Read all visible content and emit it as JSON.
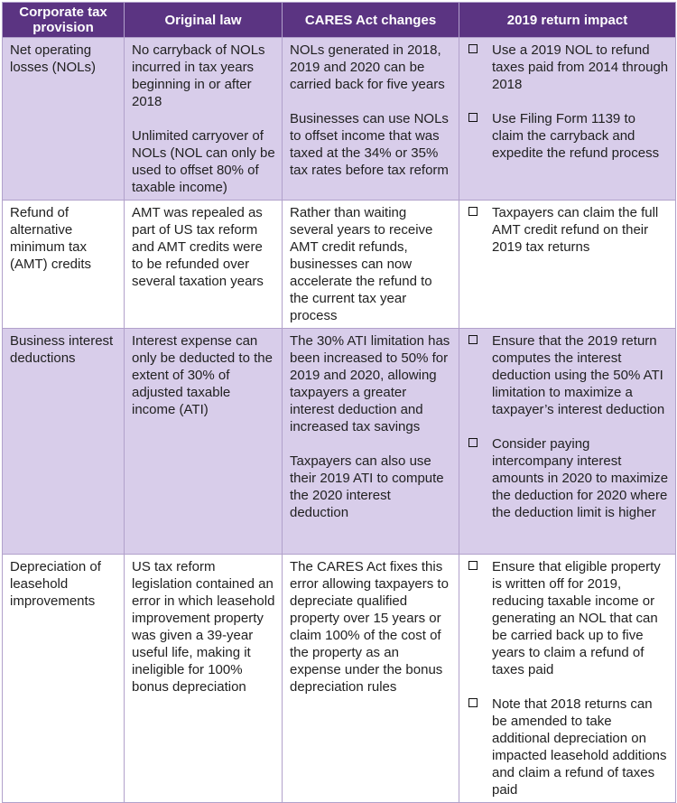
{
  "colors": {
    "header-bg": "#5b3482",
    "header-text": "#ffffff",
    "row-alt-bg": "#d8cdea",
    "row-bg": "#ffffff",
    "border": "#b1a1cb",
    "text": "#212121"
  },
  "icons": {
    "checklist_bullet": "empty-checkbox-square"
  },
  "table": {
    "headers": [
      "Corporate tax provision",
      "Original law",
      "CARES Act changes",
      "2019 return impact"
    ],
    "rows": [
      {
        "provision": "Net operating losses (NOLs)",
        "original_law": [
          "No carryback of NOLs incurred in tax years beginning in or after 2018",
          "Unlimited carryover of NOLs (NOL can only be used to offset 80% of taxable income)"
        ],
        "cares_changes": [
          "NOLs generated in 2018, 2019 and 2020 can be carried back for five years",
          "Businesses can use NOLs to offset income that was taxed at the 34% or 35% tax rates before tax reform"
        ],
        "impact": [
          "Use a 2019 NOL to refund taxes paid from 2014 through 2018",
          "Use Filing Form 1139 to claim the carryback and expedite the refund process"
        ]
      },
      {
        "provision": "Refund of alternative minimum tax (AMT) credits",
        "original_law": [
          "AMT was repealed as part of US tax reform and AMT credits were to be refunded over several taxation years"
        ],
        "cares_changes": [
          "Rather than waiting several years to receive AMT credit refunds, businesses can now accelerate the refund to the current tax year process"
        ],
        "impact": [
          "Taxpayers can claim the full AMT credit refund on their 2019 tax returns"
        ]
      },
      {
        "provision": "Business interest deductions",
        "original_law": [
          "Interest expense can only be deducted to the extent of 30% of adjusted taxable income (ATI)"
        ],
        "cares_changes": [
          "The 30% ATI limitation has been increased to 50% for 2019 and 2020, allowing taxpayers a greater interest deduction and increased tax savings",
          "Taxpayers can also use their 2019 ATI to compute the 2020 interest deduction"
        ],
        "impact": [
          "Ensure that the 2019 return computes the interest deduction using the 50% ATI limitation to maximize a taxpayer’s interest deduction",
          "Consider paying intercompany interest amounts in 2020 to maximize the deduction for 2020 where the deduction limit is higher"
        ]
      },
      {
        "provision": "Depreciation of leasehold improvements",
        "original_law": [
          "US tax reform legislation contained an error in which leasehold improvement property was given a 39-year useful life, making it ineligible for 100% bonus depreciation"
        ],
        "cares_changes": [
          "The CARES Act fixes this error allowing taxpayers to depreciate qualified property over 15 years or claim 100% of the cost of the property as an expense under the bonus depreciation rules"
        ],
        "impact": [
          "Ensure that eligible property is written off for 2019, reducing taxable income or generating an NOL that can be carried back up to five years to claim a refund of taxes paid",
          "Note that 2018 returns can be amended to take additional depreciation on impacted leasehold additions and claim a refund of taxes paid"
        ]
      }
    ]
  }
}
